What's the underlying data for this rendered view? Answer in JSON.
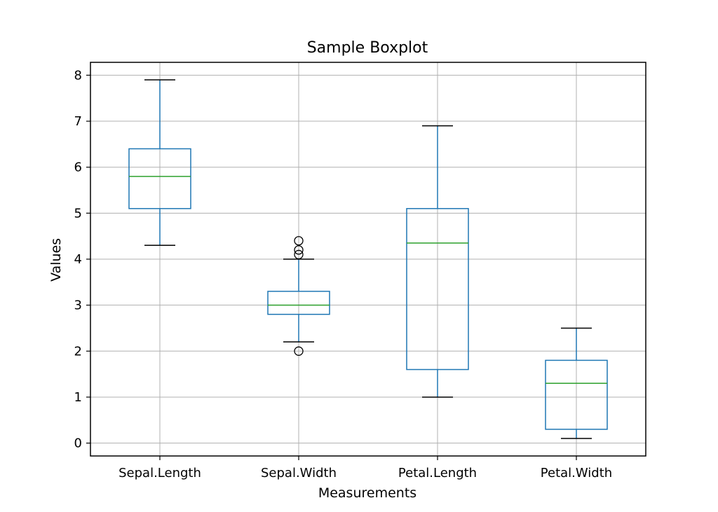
{
  "chart_data": {
    "type": "boxplot",
    "title": "Sample Boxplot",
    "xlabel": "Measurements",
    "ylabel": "Values",
    "ylim": [
      -0.28,
      8.28
    ],
    "yticks": [
      "0",
      "1",
      "2",
      "3",
      "4",
      "5",
      "6",
      "7",
      "8"
    ],
    "grid": true,
    "categories": [
      "Sepal.Length",
      "Sepal.Width",
      "Petal.Length",
      "Petal.Width"
    ],
    "boxes": [
      {
        "category": "Sepal.Length",
        "whisker_low": 4.3,
        "q1": 5.1,
        "median": 5.8,
        "q3": 6.4,
        "whisker_high": 7.9,
        "outliers": []
      },
      {
        "category": "Sepal.Width",
        "whisker_low": 2.2,
        "q1": 2.8,
        "median": 3.0,
        "q3": 3.3,
        "whisker_high": 4.0,
        "outliers": [
          2.0,
          4.1,
          4.2,
          4.4
        ]
      },
      {
        "category": "Petal.Length",
        "whisker_low": 1.0,
        "q1": 1.6,
        "median": 4.35,
        "q3": 5.1,
        "whisker_high": 6.9,
        "outliers": []
      },
      {
        "category": "Petal.Width",
        "whisker_low": 0.1,
        "q1": 0.3,
        "median": 1.3,
        "q3": 1.8,
        "whisker_high": 2.5,
        "outliers": []
      }
    ],
    "colors": {
      "box": "#1f77b4",
      "median": "#2ca02c",
      "cap": "#000000",
      "grid": "#b0b0b0",
      "axis": "#000000"
    }
  }
}
